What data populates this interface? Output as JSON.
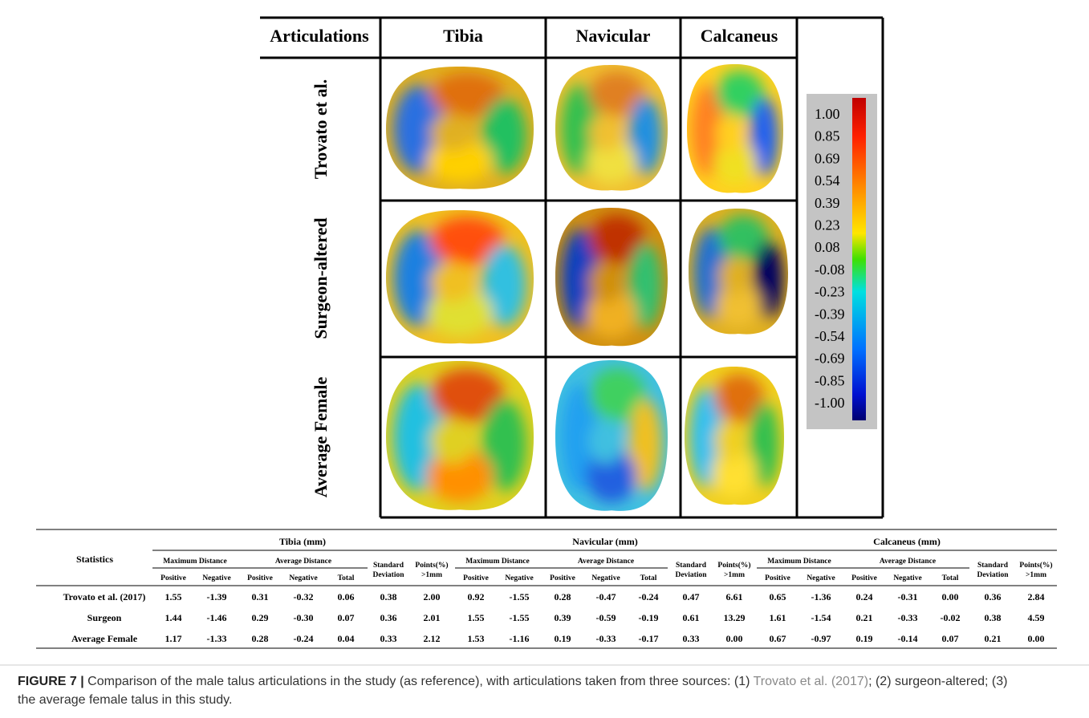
{
  "figure": {
    "corner_header": "Articulations",
    "column_headers": [
      "Tibia",
      "Navicular",
      "Calcaneus"
    ],
    "row_labels": [
      "Trovato et al.",
      "Surgeon-altered",
      "Average Female"
    ],
    "colorbar_labels": [
      "1.00",
      "0.85",
      "0.69",
      "0.54",
      "0.39",
      "0.23",
      "0.08",
      "-0.08",
      "-0.23",
      "-0.39",
      "-0.54",
      "-0.69",
      "-0.85",
      "-1.00"
    ]
  },
  "table": {
    "stub_header": "Statistics",
    "groups": [
      "Tibia (mm)",
      "Navicular (mm)",
      "Calcaneus (mm)"
    ],
    "subgroups": [
      "Maximum Distance",
      "Average Distance"
    ],
    "columns": [
      "Positive",
      "Negative",
      "Positive",
      "Negative",
      "Total",
      "Standard Deviation",
      "Points(%) >1mm"
    ],
    "rows": [
      {
        "label": "Trovato et al. (2017)",
        "values": [
          "1.55",
          "-1.39",
          "0.31",
          "-0.32",
          "0.06",
          "0.38",
          "2.00",
          "0.92",
          "-1.55",
          "0.28",
          "-0.47",
          "-0.24",
          "0.47",
          "6.61",
          "0.65",
          "-1.36",
          "0.24",
          "-0.31",
          "0.00",
          "0.36",
          "2.84"
        ]
      },
      {
        "label": "Surgeon",
        "values": [
          "1.44",
          "-1.46",
          "0.29",
          "-0.30",
          "0.07",
          "0.36",
          "2.01",
          "1.55",
          "-1.55",
          "0.39",
          "-0.59",
          "-0.19",
          "0.61",
          "13.29",
          "1.61",
          "-1.54",
          "0.21",
          "-0.33",
          "-0.02",
          "0.38",
          "4.59"
        ]
      },
      {
        "label": "Average Female",
        "values": [
          "1.17",
          "-1.33",
          "0.28",
          "-0.24",
          "0.04",
          "0.33",
          "2.12",
          "1.53",
          "-1.16",
          "0.19",
          "-0.33",
          "-0.17",
          "0.33",
          "0.00",
          "0.67",
          "-0.97",
          "0.19",
          "-0.14",
          "0.07",
          "0.21",
          "0.00"
        ]
      }
    ]
  },
  "caption": {
    "label": "FIGURE 7 |",
    "text_before": "Comparison of the male talus articulations in the study (as reference), with articulations taken from three sources: (1)",
    "link": "Trovato et al. (2017)",
    "text_after": "; (2) surgeon-altered; (3) the average female talus in this study."
  }
}
